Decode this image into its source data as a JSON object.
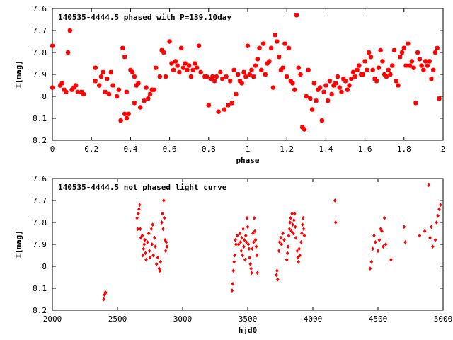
{
  "colors": {
    "points": "#ff0000",
    "frame": "#000000",
    "background": "#ffffff"
  },
  "chart_data": [
    {
      "type": "scatter",
      "title": "140535-4444.5 phased with P=139.10day",
      "xlabel": "phase",
      "ylabel": "I[mag]",
      "xlim": [
        0,
        2
      ],
      "ylim": [
        7.6,
        8.2
      ],
      "y_inverted": true,
      "grid": false,
      "marker": "star",
      "x_ticks": [
        0,
        0.2,
        0.4,
        0.6,
        0.8,
        1,
        1.2,
        1.4,
        1.6,
        1.8,
        2
      ],
      "x_tick_labels": [
        "0",
        "0.2",
        "0.4",
        "0.6",
        "0.8",
        "1",
        "1.2",
        "1.4",
        "1.6",
        "1.8",
        "2"
      ],
      "y_ticks": [
        7.6,
        7.7,
        7.8,
        7.9,
        8,
        8.1,
        8.2
      ],
      "y_tick_labels": [
        "7.6",
        "7.7",
        "7.8",
        "7.9",
        "8",
        "8.1",
        "8.2"
      ],
      "points": [
        [
          0.0,
          7.77
        ],
        [
          0.0,
          7.96
        ],
        [
          0.04,
          7.95
        ],
        [
          0.05,
          7.94
        ],
        [
          0.06,
          7.97
        ],
        [
          0.07,
          7.98
        ],
        [
          0.08,
          7.8
        ],
        [
          0.09,
          7.7
        ],
        [
          0.1,
          7.97
        ],
        [
          0.11,
          7.96
        ],
        [
          0.12,
          7.95
        ],
        [
          0.13,
          7.98
        ],
        [
          0.15,
          7.98
        ],
        [
          0.16,
          7.99
        ],
        [
          0.22,
          7.87
        ],
        [
          0.22,
          7.93
        ],
        [
          0.24,
          7.95
        ],
        [
          0.25,
          7.91
        ],
        [
          0.26,
          7.89
        ],
        [
          0.27,
          7.98
        ],
        [
          0.28,
          7.92
        ],
        [
          0.29,
          7.99
        ],
        [
          0.3,
          7.89
        ],
        [
          0.31,
          7.95
        ],
        [
          0.33,
          8.0
        ],
        [
          0.34,
          7.97
        ],
        [
          0.35,
          8.11
        ],
        [
          0.36,
          7.78
        ],
        [
          0.37,
          7.82
        ],
        [
          0.37,
          8.08
        ],
        [
          0.38,
          7.98
        ],
        [
          0.38,
          8.1
        ],
        [
          0.39,
          8.08
        ],
        [
          0.4,
          7.88
        ],
        [
          0.41,
          7.89
        ],
        [
          0.42,
          7.91
        ],
        [
          0.42,
          8.03
        ],
        [
          0.43,
          7.95
        ],
        [
          0.44,
          7.94
        ],
        [
          0.45,
          8.05
        ],
        [
          0.47,
          8.02
        ],
        [
          0.48,
          7.96
        ],
        [
          0.49,
          8.01
        ],
        [
          0.5,
          7.99
        ],
        [
          0.51,
          7.97
        ],
        [
          0.52,
          7.97
        ],
        [
          0.53,
          7.87
        ],
        [
          0.55,
          7.91
        ],
        [
          0.56,
          7.79
        ],
        [
          0.57,
          7.8
        ],
        [
          0.58,
          7.91
        ],
        [
          0.6,
          7.75
        ],
        [
          0.61,
          7.85
        ],
        [
          0.62,
          7.88
        ],
        [
          0.63,
          7.84
        ],
        [
          0.64,
          7.86
        ],
        [
          0.65,
          7.89
        ],
        [
          0.66,
          7.78
        ],
        [
          0.67,
          7.87
        ],
        [
          0.68,
          7.85
        ],
        [
          0.69,
          7.88
        ],
        [
          0.7,
          7.86
        ],
        [
          0.71,
          7.91
        ],
        [
          0.72,
          7.88
        ],
        [
          0.73,
          7.85
        ],
        [
          0.74,
          7.87
        ],
        [
          0.75,
          7.77
        ],
        [
          0.76,
          7.89
        ],
        [
          0.78,
          7.91
        ],
        [
          0.79,
          7.91
        ],
        [
          0.8,
          8.04
        ],
        [
          0.81,
          7.92
        ],
        [
          0.82,
          7.91
        ],
        [
          0.83,
          7.93
        ],
        [
          0.84,
          7.91
        ],
        [
          0.85,
          8.07
        ],
        [
          0.86,
          7.89
        ],
        [
          0.87,
          7.92
        ],
        [
          0.88,
          8.06
        ],
        [
          0.89,
          7.91
        ],
        [
          0.9,
          8.04
        ],
        [
          0.91,
          7.93
        ],
        [
          0.92,
          8.03
        ],
        [
          0.93,
          7.88
        ],
        [
          0.94,
          7.99
        ],
        [
          0.95,
          7.9
        ],
        [
          0.96,
          7.93
        ],
        [
          0.97,
          7.94
        ],
        [
          0.98,
          7.89
        ],
        [
          0.99,
          7.91
        ],
        [
          1.0,
          7.77
        ],
        [
          1.01,
          7.9
        ],
        [
          1.02,
          7.88
        ],
        [
          1.03,
          7.91
        ],
        [
          1.04,
          7.86
        ],
        [
          1.05,
          7.83
        ],
        [
          1.06,
          7.78
        ],
        [
          1.07,
          7.88
        ],
        [
          1.08,
          7.76
        ],
        [
          1.09,
          7.9
        ],
        [
          1.1,
          7.85
        ],
        [
          1.11,
          7.84
        ],
        [
          1.12,
          7.78
        ],
        [
          1.13,
          7.96
        ],
        [
          1.14,
          7.72
        ],
        [
          1.15,
          7.75
        ],
        [
          1.16,
          7.82
        ],
        [
          1.17,
          7.88
        ],
        [
          1.18,
          7.87
        ],
        [
          1.19,
          7.76
        ],
        [
          1.2,
          7.91
        ],
        [
          1.21,
          7.78
        ],
        [
          1.22,
          7.93
        ],
        [
          1.23,
          7.94
        ],
        [
          1.24,
          7.97
        ],
        [
          1.25,
          7.63
        ],
        [
          1.26,
          7.87
        ],
        [
          1.27,
          7.9
        ],
        [
          1.28,
          8.14
        ],
        [
          1.29,
          8.15
        ],
        [
          1.3,
          8.0
        ],
        [
          1.31,
          7.88
        ],
        [
          1.32,
          8.01
        ],
        [
          1.33,
          8.06
        ],
        [
          1.34,
          7.94
        ],
        [
          1.35,
          8.02
        ],
        [
          1.36,
          7.97
        ],
        [
          1.37,
          7.96
        ],
        [
          1.38,
          8.11
        ],
        [
          1.39,
          7.98
        ],
        [
          1.4,
          7.95
        ],
        [
          1.41,
          8.02
        ],
        [
          1.42,
          7.93
        ],
        [
          1.43,
          7.99
        ],
        [
          1.44,
          7.95
        ],
        [
          1.45,
          7.94
        ],
        [
          1.46,
          7.91
        ],
        [
          1.47,
          7.96
        ],
        [
          1.48,
          7.98
        ],
        [
          1.49,
          7.92
        ],
        [
          1.5,
          7.93
        ],
        [
          1.51,
          7.97
        ],
        [
          1.52,
          7.95
        ],
        [
          1.53,
          7.92
        ],
        [
          1.54,
          7.89
        ],
        [
          1.55,
          7.91
        ],
        [
          1.56,
          7.88
        ],
        [
          1.57,
          7.86
        ],
        [
          1.58,
          7.9
        ],
        [
          1.59,
          7.9
        ],
        [
          1.6,
          7.84
        ],
        [
          1.61,
          7.88
        ],
        [
          1.62,
          7.8
        ],
        [
          1.63,
          7.82
        ],
        [
          1.64,
          7.88
        ],
        [
          1.65,
          7.92
        ],
        [
          1.66,
          7.93
        ],
        [
          1.67,
          7.87
        ],
        [
          1.68,
          7.79
        ],
        [
          1.69,
          7.84
        ],
        [
          1.7,
          7.9
        ],
        [
          1.71,
          7.91
        ],
        [
          1.72,
          7.88
        ],
        [
          1.73,
          7.9
        ],
        [
          1.74,
          7.86
        ],
        [
          1.75,
          7.79
        ],
        [
          1.76,
          7.93
        ],
        [
          1.77,
          7.95
        ],
        [
          1.78,
          7.82
        ],
        [
          1.79,
          7.8
        ],
        [
          1.8,
          7.78
        ],
        [
          1.81,
          7.86
        ],
        [
          1.82,
          7.76
        ],
        [
          1.83,
          7.86
        ],
        [
          1.84,
          7.84
        ],
        [
          1.85,
          7.87
        ],
        [
          1.86,
          8.03
        ],
        [
          1.87,
          7.8
        ],
        [
          1.88,
          7.83
        ],
        [
          1.89,
          7.86
        ],
        [
          1.9,
          7.88
        ],
        [
          1.91,
          7.84
        ],
        [
          1.92,
          7.86
        ],
        [
          1.93,
          7.84
        ],
        [
          1.94,
          7.92
        ],
        [
          1.95,
          7.88
        ],
        [
          1.96,
          7.8
        ],
        [
          1.97,
          7.78
        ],
        [
          1.98,
          8.01
        ]
      ]
    },
    {
      "type": "scatter",
      "title": "140535-4444.5 not phased light curve",
      "xlabel": "hjd0",
      "ylabel": "I[mag]",
      "xlim": [
        2000,
        5000
      ],
      "ylim": [
        7.6,
        8.2
      ],
      "y_inverted": true,
      "grid": false,
      "marker": "diamond",
      "x_ticks": [
        2000,
        2500,
        3000,
        3500,
        4000,
        4500,
        5000
      ],
      "x_tick_labels": [
        "2000",
        "2500",
        "3000",
        "3500",
        "4000",
        "4500",
        "5000"
      ],
      "y_ticks": [
        7.6,
        7.7,
        7.8,
        7.9,
        8,
        8.1,
        8.2
      ],
      "y_tick_labels": [
        "7.6",
        "7.7",
        "7.8",
        "7.9",
        "8",
        "8.1",
        "8.2"
      ],
      "points": [
        [
          2395,
          8.15
        ],
        [
          2400,
          8.13
        ],
        [
          2405,
          8.12
        ],
        [
          2410,
          8.12
        ],
        [
          2650,
          7.78
        ],
        [
          2655,
          7.83
        ],
        [
          2660,
          7.76
        ],
        [
          2665,
          7.74
        ],
        [
          2670,
          7.72
        ],
        [
          2675,
          7.83
        ],
        [
          2680,
          7.87
        ],
        [
          2690,
          7.86
        ],
        [
          2695,
          7.95
        ],
        [
          2700,
          7.92
        ],
        [
          2705,
          7.9
        ],
        [
          2710,
          7.88
        ],
        [
          2715,
          7.94
        ],
        [
          2720,
          7.97
        ],
        [
          2730,
          7.89
        ],
        [
          2740,
          7.85
        ],
        [
          2745,
          7.93
        ],
        [
          2750,
          7.96
        ],
        [
          2760,
          7.83
        ],
        [
          2765,
          7.9
        ],
        [
          2770,
          7.81
        ],
        [
          2775,
          7.95
        ],
        [
          2785,
          7.87
        ],
        [
          2790,
          7.91
        ],
        [
          2800,
          7.99
        ],
        [
          2810,
          7.96
        ],
        [
          2820,
          8.01
        ],
        [
          2825,
          8.02
        ],
        [
          2830,
          7.98
        ],
        [
          2840,
          7.8
        ],
        [
          2845,
          7.76
        ],
        [
          2850,
          7.83
        ],
        [
          2855,
          7.7
        ],
        [
          2860,
          7.78
        ],
        [
          2865,
          7.88
        ],
        [
          2870,
          7.93
        ],
        [
          2875,
          7.89
        ],
        [
          2880,
          7.91
        ],
        [
          3380,
          8.11
        ],
        [
          3385,
          8.08
        ],
        [
          3390,
          8.02
        ],
        [
          3395,
          7.98
        ],
        [
          3400,
          7.95
        ],
        [
          3405,
          7.88
        ],
        [
          3410,
          7.9
        ],
        [
          3420,
          7.86
        ],
        [
          3430,
          7.9
        ],
        [
          3440,
          7.85
        ],
        [
          3445,
          7.89
        ],
        [
          3450,
          7.93
        ],
        [
          3455,
          7.87
        ],
        [
          3460,
          7.95
        ],
        [
          3465,
          7.83
        ],
        [
          3470,
          7.91
        ],
        [
          3475,
          7.88
        ],
        [
          3480,
          7.97
        ],
        [
          3485,
          7.86
        ],
        [
          3490,
          7.89
        ],
        [
          3495,
          7.78
        ],
        [
          3500,
          7.82
        ],
        [
          3505,
          7.9
        ],
        [
          3510,
          7.92
        ],
        [
          3515,
          7.96
        ],
        [
          3520,
          7.99
        ],
        [
          3525,
          8.01
        ],
        [
          3530,
          8.03
        ],
        [
          3535,
          7.92
        ],
        [
          3540,
          7.85
        ],
        [
          3545,
          7.89
        ],
        [
          3550,
          7.78
        ],
        [
          3555,
          7.84
        ],
        [
          3560,
          7.88
        ],
        [
          3565,
          7.91
        ],
        [
          3570,
          7.95
        ],
        [
          3575,
          8.03
        ],
        [
          3720,
          8.04
        ],
        [
          3725,
          8.02
        ],
        [
          3730,
          8.06
        ],
        [
          3740,
          7.93
        ],
        [
          3745,
          7.89
        ],
        [
          3755,
          7.87
        ],
        [
          3760,
          7.9
        ],
        [
          3770,
          7.85
        ],
        [
          3780,
          7.88
        ],
        [
          3800,
          7.97
        ],
        [
          3805,
          7.94
        ],
        [
          3810,
          7.91
        ],
        [
          3815,
          7.86
        ],
        [
          3820,
          7.83
        ],
        [
          3825,
          7.8
        ],
        [
          3830,
          7.78
        ],
        [
          3835,
          7.84
        ],
        [
          3840,
          7.76
        ],
        [
          3845,
          7.81
        ],
        [
          3850,
          7.85
        ],
        [
          3855,
          7.79
        ],
        [
          3860,
          7.76
        ],
        [
          3865,
          7.82
        ],
        [
          3870,
          7.87
        ],
        [
          3880,
          7.93
        ],
        [
          3885,
          7.96
        ],
        [
          3890,
          7.98
        ],
        [
          3895,
          7.92
        ],
        [
          3900,
          7.95
        ],
        [
          3910,
          7.89
        ],
        [
          3915,
          7.85
        ],
        [
          3920,
          7.81
        ],
        [
          3925,
          7.78
        ],
        [
          3930,
          7.83
        ],
        [
          3935,
          7.86
        ],
        [
          4170,
          7.7
        ],
        [
          4175,
          7.8
        ],
        [
          4440,
          8.01
        ],
        [
          4450,
          7.98
        ],
        [
          4460,
          7.92
        ],
        [
          4470,
          7.86
        ],
        [
          4480,
          7.89
        ],
        [
          4500,
          7.93
        ],
        [
          4510,
          7.88
        ],
        [
          4520,
          7.83
        ],
        [
          4530,
          7.84
        ],
        [
          4540,
          7.91
        ],
        [
          4550,
          7.78
        ],
        [
          4560,
          7.9
        ],
        [
          4600,
          7.97
        ],
        [
          4700,
          7.82
        ],
        [
          4710,
          7.89
        ],
        [
          4820,
          7.86
        ],
        [
          4860,
          7.84
        ],
        [
          4890,
          7.63
        ],
        [
          4900,
          7.87
        ],
        [
          4910,
          7.82
        ],
        [
          4920,
          7.91
        ],
        [
          4940,
          7.88
        ],
        [
          4950,
          7.8
        ],
        [
          4960,
          7.77
        ],
        [
          4970,
          7.74
        ],
        [
          4980,
          7.72
        ]
      ]
    }
  ]
}
